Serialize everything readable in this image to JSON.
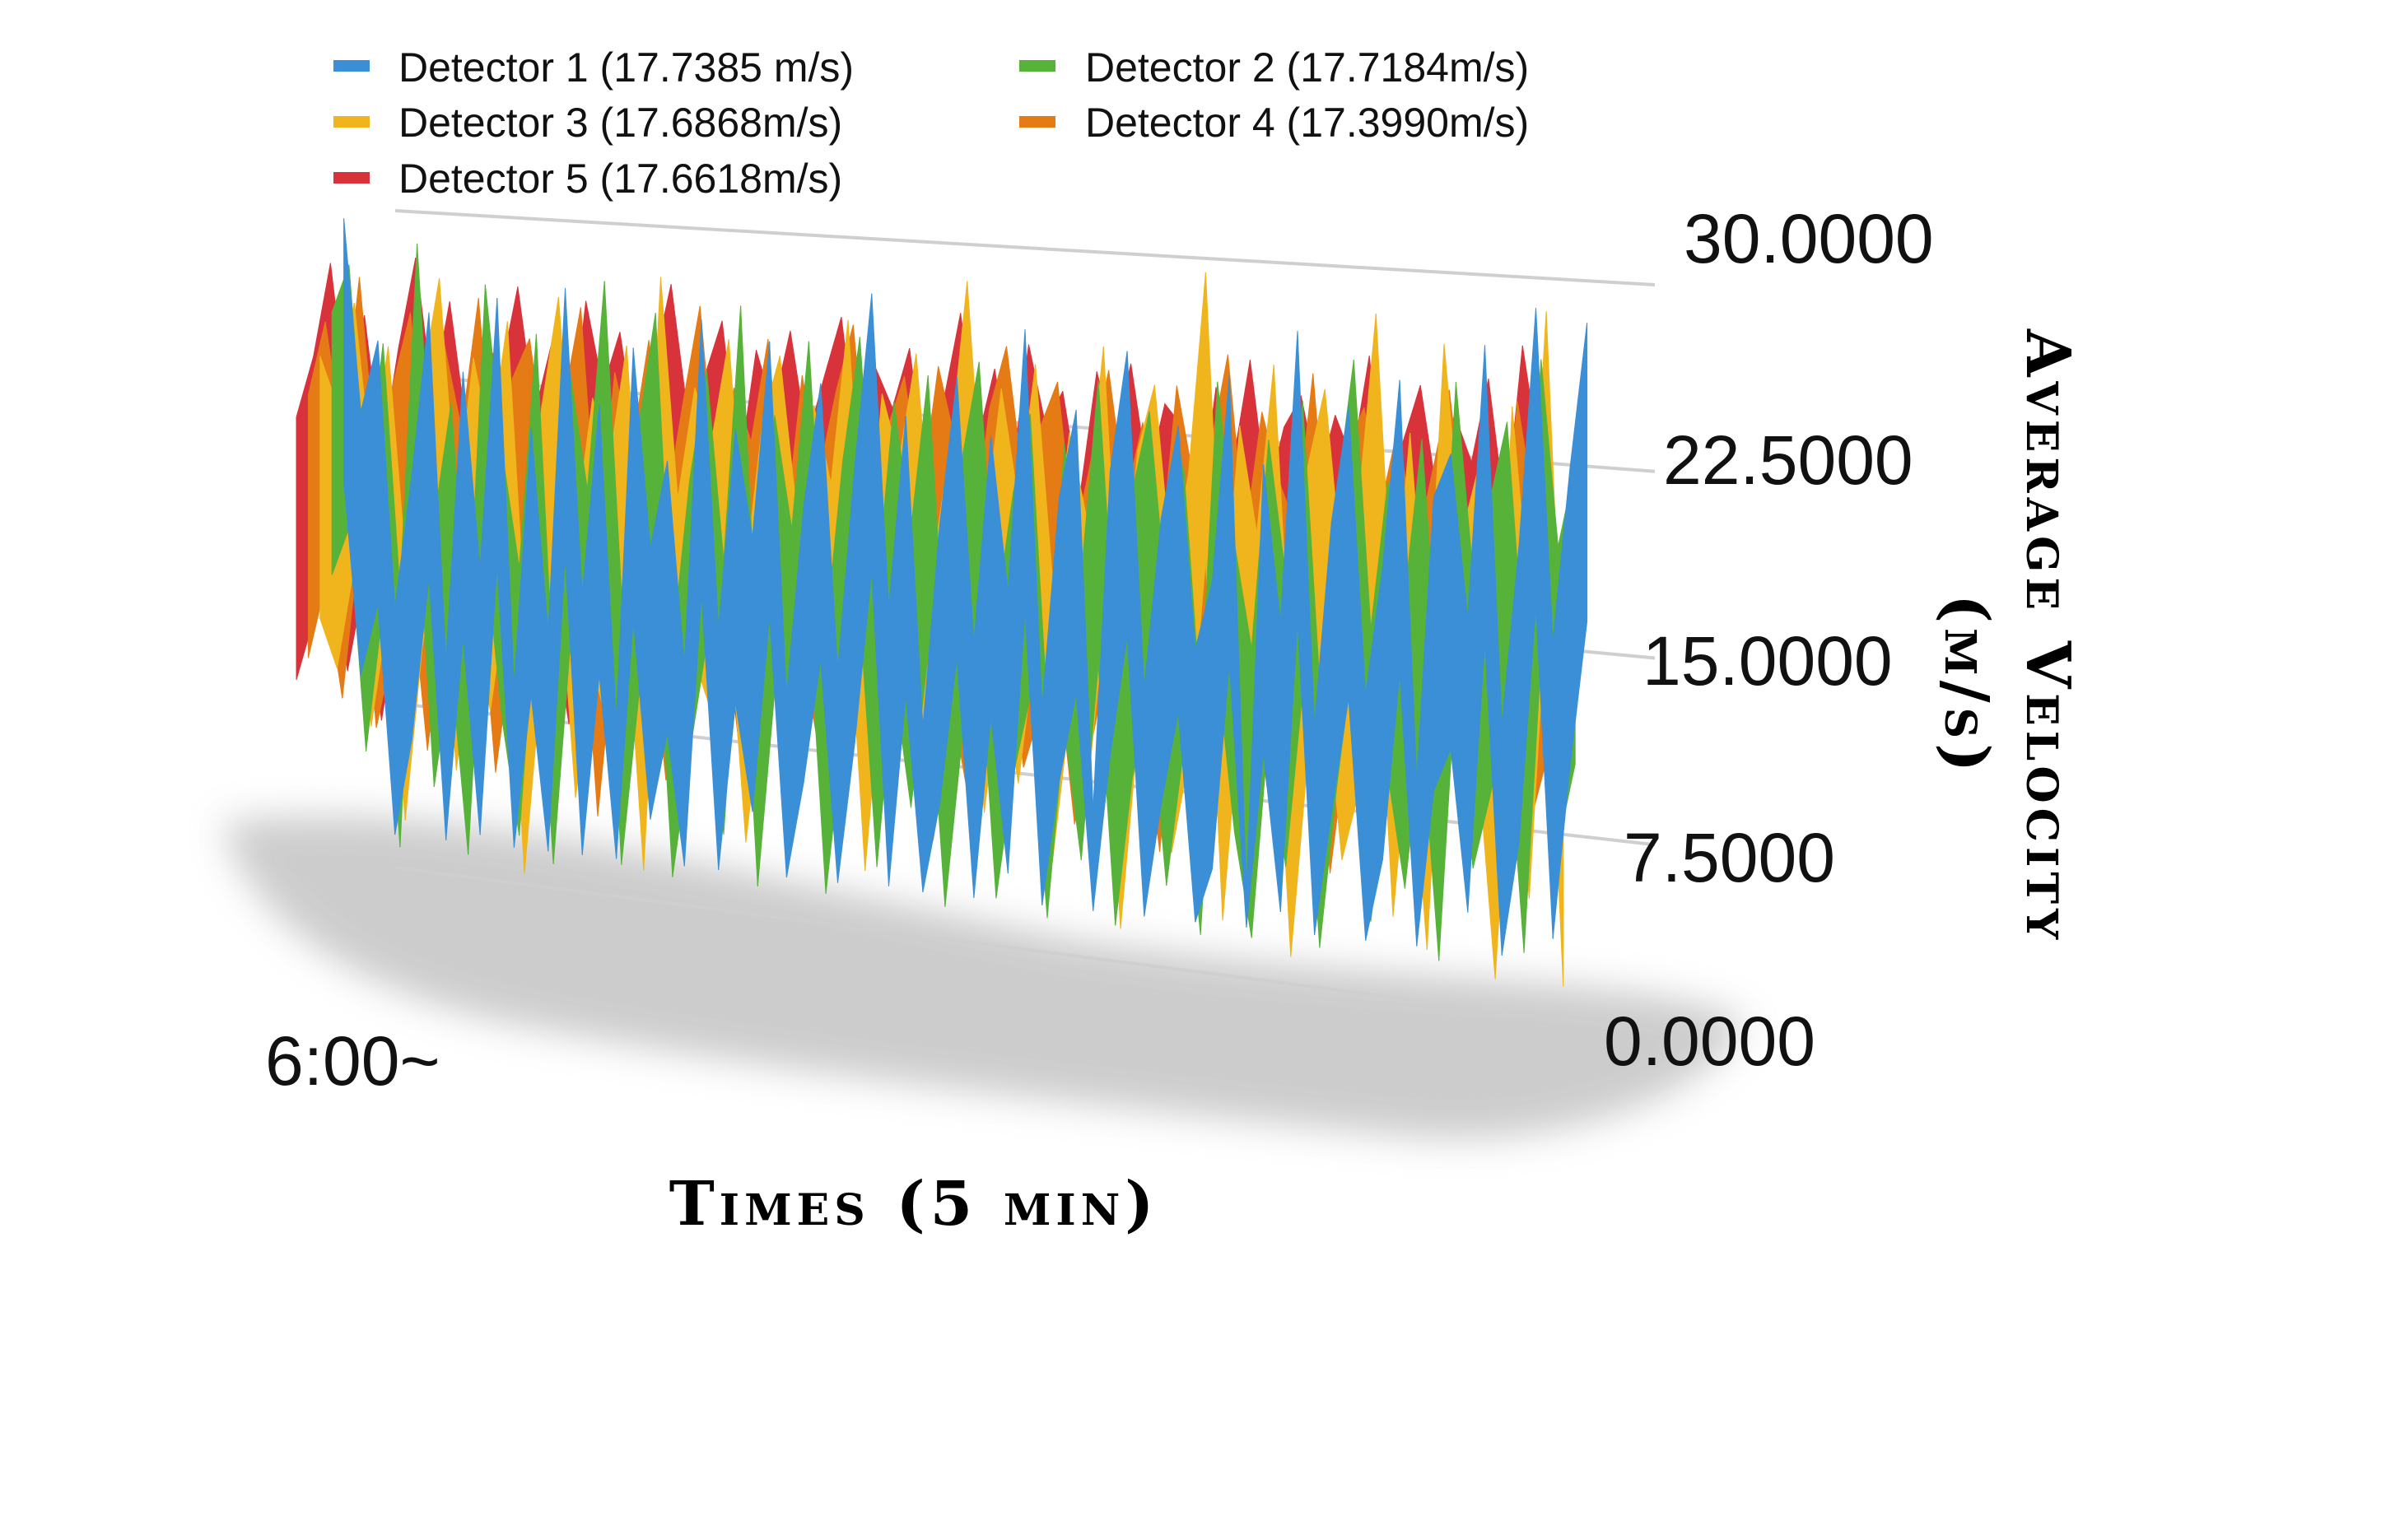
{
  "chart_data": {
    "type": "area",
    "title": "",
    "xlabel": "Times (5 min)",
    "ylabel": "Average Velocity (m/s)",
    "ylabel_lines": [
      "Average Velocity",
      "(m/s)"
    ],
    "x_start_label": "6:00~",
    "ylim": [
      0,
      30
    ],
    "yticks": [
      "0.0000",
      "7.5000",
      "15.0000",
      "22.5000",
      "30.0000"
    ],
    "grid": true,
    "legend_position": "top-left",
    "series": [
      {
        "name": "Detector 1 (17.7385 m/s)",
        "color": "#3b8fd6",
        "values": [
          27.9,
          19.1,
          22.4,
          10.3,
          16.4,
          23.8,
          8.1,
          21.2,
          12.4,
          24.6,
          7.3,
          18.9,
          9.8,
          25.2,
          11.6,
          20.1,
          6.2,
          22.7,
          13.9,
          17.8,
          8.9,
          24.1,
          10.6,
          19.4,
          14.7,
          23.3,
          7.9,
          16.2,
          21.6,
          9.2,
          18.1,
          25.6,
          12.1,
          20.4,
          7.1,
          15.9,
          22.2,
          10.9,
          19.8,
          13.2,
          24.4,
          8.4,
          17.3,
          21.1,
          4.3,
          18.6,
          23.7,
          9.6,
          16.8,
          20.7,
          11.4,
          14.3,
          22.9,
          1.6,
          19.3,
          12.8,
          24.9,
          8.7,
          17.1,
          21.9,
          10.1,
          15.4,
          23.1,
          6.8,
          18.4,
          20.2,
          13.6,
          24.7,
          9.4,
          16.6,
          26.3,
          12.9,
          19.9,
          25.8
        ]
      },
      {
        "name": "Detector 2 (17.7184m/s)",
        "color": "#57b23a",
        "values": [
          24.1,
          26.3,
          16.2,
          22.8,
          11.7,
          27.4,
          14.9,
          20.3,
          9.6,
          25.7,
          18.2,
          13.1,
          23.6,
          8.4,
          21.9,
          16.8,
          26.1,
          12.3,
          19.7,
          24.8,
          10.2,
          17.5,
          22.4,
          14.1,
          25.3,
          9.8,
          20.6,
          15.7,
          23.9,
          11.3,
          18.8,
          24.2,
          13.4,
          21.5,
          16.1,
          22.7,
          10.7,
          19.2,
          23.4,
          12.6,
          17.9,
          21.3,
          8.9,
          20.1,
          14.6,
          22.9,
          11.8,
          18.3,
          21.7,
          13.9,
          19.6,
          9.7,
          23.1,
          16.4,
          12.1,
          20.8,
          15.2,
          22.5,
          10.9,
          18.7,
          24.3,
          13.3,
          19.4,
          14.8,
          21.2,
          11.5,
          23.6,
          15.9,
          18.9,
          22.1,
          12.7,
          24.7,
          17.2,
          20.5
        ]
      },
      {
        "name": "Detector 3 (17.6868m/s)",
        "color": "#f0b41c",
        "values": [
          22.6,
          20.4,
          25.1,
          17.9,
          23.2,
          13.8,
          21.7,
          26.4,
          16.3,
          22.9,
          19.1,
          24.6,
          11.9,
          20.8,
          25.8,
          15.6,
          21.4,
          18.7,
          23.8,
          12.7,
          26.9,
          17.2,
          22.1,
          19.9,
          24.3,
          14.4,
          20.9,
          23.7,
          16.9,
          21.6,
          18.3,
          25.4,
          13.7,
          22.3,
          19.5,
          24.1,
          15.3,
          20.2,
          27.3,
          16.7,
          22.8,
          18.1,
          23.9,
          14.9,
          21.1,
          17.6,
          24.8,
          12.4,
          20.5,
          23.3,
          15.8,
          19.7,
          28.1,
          13.2,
          21.8,
          17.4,
          24.4,
          11.6,
          20.3,
          23.5,
          16.2,
          19.1,
          26.7,
          14.1,
          21.9,
          12.9,
          25.6,
          17.8,
          20.6,
          9.3,
          23.2,
          15.4,
          27.1,
          11.2
        ]
      },
      {
        "name": "Detector 4 (17.3990m/s)",
        "color": "#e57b14",
        "values": [
          21.3,
          24.7,
          19.6,
          26.8,
          18.4,
          22.1,
          25.3,
          17.6,
          23.9,
          20.2,
          26.1,
          16.9,
          22.6,
          24.4,
          18.8,
          21.7,
          25.9,
          15.4,
          23.1,
          19.8,
          24.6,
          17.3,
          21.9,
          26.2,
          18.1,
          22.7,
          20.4,
          24.9,
          16.5,
          23.4,
          19.2,
          22.8,
          25.7,
          17.9,
          21.3,
          23.6,
          18.6,
          24.1,
          20.9,
          16.8,
          22.4,
          25.1,
          19.3,
          21.8,
          23.7,
          17.1,
          20.6,
          24.3,
          18.9,
          22.2,
          16.3,
          23.8,
          19.9,
          21.4,
          25.2,
          17.7,
          22.9,
          20.1,
          18.2,
          24.6,
          16.1,
          21.7,
          23.3,
          19.4,
          22.6,
          17.5,
          20.8,
          24.2,
          18.3,
          21.5,
          15.8,
          23.9,
          19.6,
          22.3
        ]
      },
      {
        "name": "Detector 5 (17.6618m/s)",
        "color": "#d8333a",
        "values": [
          20.8,
          23.6,
          27.9,
          21.4,
          25.6,
          19.3,
          24.2,
          28.3,
          22.1,
          26.4,
          20.7,
          25.1,
          23.3,
          27.2,
          21.6,
          24.8,
          19.9,
          26.7,
          22.9,
          25.4,
          20.3,
          24.1,
          27.6,
          21.8,
          23.7,
          26.1,
          19.6,
          24.9,
          22.4,
          25.8,
          21.1,
          23.9,
          26.5,
          20.6,
          24.4,
          22.7,
          25.3,
          19.8,
          23.1,
          26.9,
          21.5,
          24.6,
          20.2,
          25.7,
          22.3,
          23.8,
          19.4,
          24.7,
          21.9,
          25.1,
          20.4,
          23.5,
          22.6,
          18.7,
          24.3,
          21.2,
          25.5,
          19.9,
          22.8,
          24.1,
          20.7,
          23.4,
          21.6,
          25.9,
          19.1,
          22.5,
          24.8,
          20.3,
          23.7,
          21.8,
          25.2,
          19.7,
          26.6,
          22.1
        ]
      }
    ]
  }
}
